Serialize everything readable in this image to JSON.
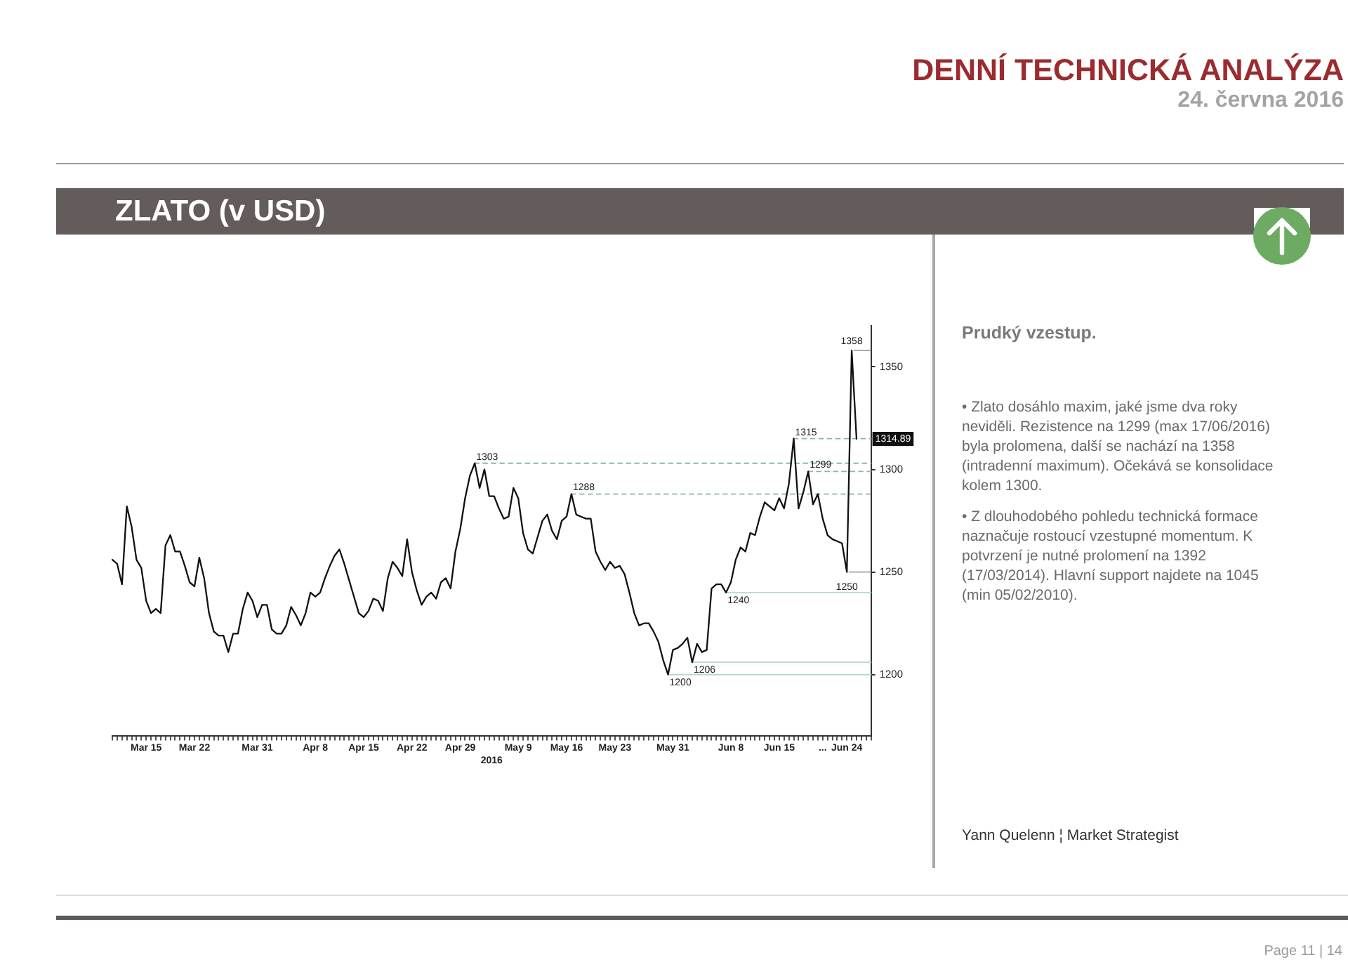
{
  "chart_data": {
    "type": "line",
    "title": "ZLATO (v USD)",
    "subtitle": "Prudký vzestup.",
    "xlabel": "2016",
    "annotations": [
      "DENNÍ TECHNICKÁ ANALÝZA",
      "24. června 2016",
      "• Zlato dosáhlo maxim, jaké jsme dva roky neviděli. Rezistence na 1299 (max 17/06/2016) byla prolomena, další se nachází na 1358 (intradenní maximum). Očekává se konsolidace kolem 1300.",
      "• Z dlouhodobého pohledu technická formace naznačuje rostoucí vzestupné momentum. K potvrzení je nutné prolomení na 1392 (17/03/2014). Hlavní support najdete na 1045 (min 05/02/2010).",
      "Yann Quelenn ¦ Market Strategist",
      "Page 11 | 14",
      {
        "text": "1358",
        "y": 1358
      },
      {
        "text": "1250",
        "y": 1250
      },
      {
        "text": "1314.89",
        "y": 1314.89
      }
    ],
    "categories": [
      null,
      null,
      null,
      null,
      null,
      null,
      null,
      "Mar 15",
      null,
      null,
      null,
      null,
      null,
      null,
      null,
      null,
      null,
      "Mar 22",
      null,
      null,
      null,
      null,
      null,
      null,
      null,
      null,
      null,
      null,
      null,
      null,
      "Mar 31",
      null,
      null,
      null,
      null,
      null,
      null,
      null,
      null,
      null,
      null,
      null,
      "Apr 8",
      null,
      null,
      null,
      null,
      null,
      null,
      null,
      null,
      null,
      "Apr 15",
      null,
      null,
      null,
      null,
      null,
      null,
      null,
      null,
      null,
      "Apr 22",
      null,
      null,
      null,
      null,
      null,
      null,
      null,
      null,
      null,
      "Apr 29",
      null,
      null,
      null,
      null,
      null,
      null,
      null,
      null,
      null,
      null,
      null,
      "May 9",
      null,
      null,
      null,
      null,
      null,
      null,
      null,
      null,
      null,
      "May 16",
      null,
      null,
      null,
      null,
      null,
      null,
      null,
      null,
      null,
      "May 23",
      null,
      null,
      null,
      null,
      null,
      null,
      null,
      null,
      null,
      null,
      null,
      "May 31",
      null,
      null,
      null,
      null,
      null,
      null,
      null,
      null,
      null,
      null,
      null,
      "Jun 8",
      null,
      null,
      null,
      null,
      null,
      null,
      null,
      null,
      null,
      "Jun 15",
      null,
      null,
      null,
      null,
      null,
      null,
      null,
      null,
      "...",
      null,
      null,
      null,
      null,
      "Jun 24",
      null,
      null,
      null,
      null,
      null
    ],
    "series": [
      {
        "color": "#111111",
        "values": [
          1256,
          1254,
          1244,
          1282,
          1272,
          1256,
          1252,
          1236,
          1230,
          1232,
          1230,
          1263,
          1268,
          1260,
          1260,
          1253,
          1245,
          1243,
          1257,
          1247,
          1230,
          1221,
          1219,
          1219,
          1211,
          1220,
          1220,
          1232,
          1240,
          1236,
          1228,
          1234,
          1234,
          1222,
          1220,
          1220,
          1224,
          1233,
          1229,
          1224,
          1230,
          1240,
          1238,
          1240,
          1247,
          1253,
          1258,
          1261,
          1254,
          1246,
          1238,
          1230,
          1228,
          1231,
          1237,
          1236,
          1231,
          1247,
          1255,
          1252,
          1248,
          1266,
          1250,
          1241,
          1234,
          1238,
          1240,
          1237,
          1245,
          1247,
          1242,
          1260,
          1271,
          1286,
          1297,
          1303,
          1291,
          1300,
          1287,
          1287,
          1281,
          1276,
          1277,
          1291,
          1286,
          1269,
          1261,
          1259,
          1267,
          1275,
          1278,
          1270,
          1266,
          1275,
          1277,
          1288,
          1278,
          1277,
          1276,
          1276,
          1260,
          1255,
          1251,
          1255,
          1252,
          1253,
          1249,
          1240,
          1230,
          1224,
          1225,
          1225,
          1221,
          1216,
          1207,
          1200,
          1212,
          1213,
          1215,
          1218,
          1206,
          1215,
          1211,
          1212,
          1242,
          1244,
          1244,
          1240,
          1245,
          1256,
          1262,
          1260,
          1269,
          1268,
          1277,
          1284,
          1282,
          1280,
          1286,
          1281,
          1293,
          1315,
          1281,
          1289,
          1299,
          1283,
          1288,
          1276,
          1268,
          1266,
          1265,
          1264,
          1250,
          1358,
          1314.89,
          null,
          null,
          null
        ]
      },
      {
        "name": "1303",
        "color": "#8db5ad",
        "line_style": "dashed",
        "values": [
          null,
          null,
          null,
          null,
          null,
          null,
          null,
          null,
          null,
          null,
          null,
          null,
          null,
          null,
          null,
          null,
          null,
          null,
          null,
          null,
          null,
          null,
          null,
          null,
          null,
          null,
          null,
          null,
          null,
          null,
          null,
          null,
          null,
          null,
          null,
          null,
          null,
          null,
          null,
          null,
          null,
          null,
          null,
          null,
          null,
          null,
          null,
          null,
          null,
          null,
          null,
          null,
          null,
          null,
          null,
          null,
          null,
          null,
          null,
          null,
          null,
          null,
          null,
          null,
          null,
          null,
          null,
          null,
          null,
          null,
          null,
          null,
          null,
          null,
          null,
          1303,
          1303,
          1303,
          1303,
          1303,
          1303,
          1303,
          1303,
          1303,
          1303,
          1303,
          1303,
          1303,
          1303,
          1303,
          1303,
          1303,
          1303,
          1303,
          1303,
          1303,
          1303,
          1303,
          1303,
          1303,
          1303,
          1303,
          1303,
          1303,
          1303,
          1303,
          1303,
          1303,
          1303,
          1303,
          1303,
          1303,
          1303,
          1303,
          1303,
          1303,
          1303,
          1303,
          1303,
          1303,
          1303,
          1303,
          1303,
          1303,
          1303,
          1303,
          1303,
          1303,
          1303,
          1303,
          1303,
          1303,
          1303,
          1303,
          1303,
          1303,
          1303,
          1303,
          1303,
          1303,
          1303,
          1303,
          1303,
          1303,
          1303,
          1303,
          1303,
          1303,
          1303,
          1303,
          1303,
          1303,
          1303,
          1303,
          1303,
          1303,
          1303,
          1303
        ]
      },
      {
        "name": "1288",
        "color": "#8db5ad",
        "line_style": "dashed",
        "values": [
          null,
          null,
          null,
          null,
          null,
          null,
          null,
          null,
          null,
          null,
          null,
          null,
          null,
          null,
          null,
          null,
          null,
          null,
          null,
          null,
          null,
          null,
          null,
          null,
          null,
          null,
          null,
          null,
          null,
          null,
          null,
          null,
          null,
          null,
          null,
          null,
          null,
          null,
          null,
          null,
          null,
          null,
          null,
          null,
          null,
          null,
          null,
          null,
          null,
          null,
          null,
          null,
          null,
          null,
          null,
          null,
          null,
          null,
          null,
          null,
          null,
          null,
          null,
          null,
          null,
          null,
          null,
          null,
          null,
          null,
          null,
          null,
          null,
          null,
          null,
          null,
          null,
          null,
          null,
          null,
          null,
          null,
          null,
          null,
          null,
          null,
          null,
          null,
          null,
          null,
          null,
          null,
          null,
          null,
          null,
          1288,
          1288,
          1288,
          1288,
          1288,
          1288,
          1288,
          1288,
          1288,
          1288,
          1288,
          1288,
          1288,
          1288,
          1288,
          1288,
          1288,
          1288,
          1288,
          1288,
          1288,
          1288,
          1288,
          1288,
          1288,
          1288,
          1288,
          1288,
          1288,
          1288,
          1288,
          1288,
          1288,
          1288,
          1288,
          1288,
          1288,
          1288,
          1288,
          1288,
          1288,
          1288,
          1288,
          1288,
          1288,
          1288,
          1288,
          1288,
          1288,
          1288,
          1288,
          1288,
          1288,
          1288,
          1288,
          1288,
          1288,
          1288,
          1288,
          1288,
          1288,
          1288,
          1288
        ]
      },
      {
        "name": "1315",
        "color": "#8db5ad",
        "line_style": "dashed",
        "values": [
          null,
          null,
          null,
          null,
          null,
          null,
          null,
          null,
          null,
          null,
          null,
          null,
          null,
          null,
          null,
          null,
          null,
          null,
          null,
          null,
          null,
          null,
          null,
          null,
          null,
          null,
          null,
          null,
          null,
          null,
          null,
          null,
          null,
          null,
          null,
          null,
          null,
          null,
          null,
          null,
          null,
          null,
          null,
          null,
          null,
          null,
          null,
          null,
          null,
          null,
          null,
          null,
          null,
          null,
          null,
          null,
          null,
          null,
          null,
          null,
          null,
          null,
          null,
          null,
          null,
          null,
          null,
          null,
          null,
          null,
          null,
          null,
          null,
          null,
          null,
          null,
          null,
          null,
          null,
          null,
          null,
          null,
          null,
          null,
          null,
          null,
          null,
          null,
          null,
          null,
          null,
          null,
          null,
          null,
          null,
          null,
          null,
          null,
          null,
          null,
          null,
          null,
          null,
          null,
          null,
          null,
          null,
          null,
          null,
          null,
          null,
          null,
          null,
          null,
          null,
          null,
          null,
          null,
          null,
          null,
          null,
          null,
          null,
          null,
          null,
          null,
          null,
          null,
          null,
          null,
          null,
          null,
          null,
          null,
          null,
          null,
          null,
          null,
          null,
          null,
          null,
          1315,
          1315,
          1315,
          1315,
          1315,
          1315,
          1315,
          1315,
          1315,
          1315,
          1315,
          1315,
          1315,
          1315,
          1315,
          1315,
          1315
        ]
      },
      {
        "name": "1299",
        "color": "#8db5ad",
        "line_style": "dashed",
        "values": [
          null,
          null,
          null,
          null,
          null,
          null,
          null,
          null,
          null,
          null,
          null,
          null,
          null,
          null,
          null,
          null,
          null,
          null,
          null,
          null,
          null,
          null,
          null,
          null,
          null,
          null,
          null,
          null,
          null,
          null,
          null,
          null,
          null,
          null,
          null,
          null,
          null,
          null,
          null,
          null,
          null,
          null,
          null,
          null,
          null,
          null,
          null,
          null,
          null,
          null,
          null,
          null,
          null,
          null,
          null,
          null,
          null,
          null,
          null,
          null,
          null,
          null,
          null,
          null,
          null,
          null,
          null,
          null,
          null,
          null,
          null,
          null,
          null,
          null,
          null,
          null,
          null,
          null,
          null,
          null,
          null,
          null,
          null,
          null,
          null,
          null,
          null,
          null,
          null,
          null,
          null,
          null,
          null,
          null,
          null,
          null,
          null,
          null,
          null,
          null,
          null,
          null,
          null,
          null,
          null,
          null,
          null,
          null,
          null,
          null,
          null,
          null,
          null,
          null,
          null,
          null,
          null,
          null,
          null,
          null,
          null,
          null,
          null,
          null,
          null,
          null,
          null,
          null,
          null,
          null,
          null,
          null,
          null,
          null,
          null,
          null,
          null,
          null,
          null,
          null,
          null,
          null,
          null,
          null,
          1299,
          1299,
          1299,
          1299,
          1299,
          1299,
          1299,
          1299,
          1299,
          1299,
          1299,
          1299,
          1299,
          1299
        ]
      },
      {
        "name": "1240",
        "color": "#b2dccd",
        "line_style": "solid",
        "values": [
          null,
          null,
          null,
          null,
          null,
          null,
          null,
          null,
          null,
          null,
          null,
          null,
          null,
          null,
          null,
          null,
          null,
          null,
          null,
          null,
          null,
          null,
          null,
          null,
          null,
          null,
          null,
          null,
          null,
          null,
          null,
          null,
          null,
          null,
          null,
          null,
          null,
          null,
          null,
          null,
          null,
          null,
          null,
          null,
          null,
          null,
          null,
          null,
          null,
          null,
          null,
          null,
          null,
          null,
          null,
          null,
          null,
          null,
          null,
          null,
          null,
          null,
          null,
          null,
          null,
          null,
          null,
          null,
          null,
          null,
          null,
          null,
          null,
          null,
          null,
          null,
          null,
          null,
          null,
          null,
          null,
          null,
          null,
          null,
          null,
          null,
          null,
          null,
          null,
          null,
          null,
          null,
          null,
          null,
          null,
          null,
          null,
          null,
          null,
          null,
          null,
          null,
          null,
          null,
          null,
          null,
          null,
          null,
          null,
          null,
          null,
          null,
          null,
          null,
          null,
          null,
          null,
          null,
          null,
          null,
          null,
          null,
          null,
          null,
          null,
          null,
          null,
          1240,
          1240,
          1240,
          1240,
          1240,
          1240,
          1240,
          1240,
          1240,
          1240,
          1240,
          1240,
          1240,
          1240,
          1240,
          1240,
          1240,
          1240,
          1240,
          1240,
          1240,
          1240,
          1240,
          1240,
          1240,
          1240,
          1240,
          1240,
          1240,
          1240,
          1240
        ]
      },
      {
        "name": "1206",
        "color": "#b2dccd",
        "line_style": "solid",
        "values": [
          null,
          null,
          null,
          null,
          null,
          null,
          null,
          null,
          null,
          null,
          null,
          null,
          null,
          null,
          null,
          null,
          null,
          null,
          null,
          null,
          null,
          null,
          null,
          null,
          null,
          null,
          null,
          null,
          null,
          null,
          null,
          null,
          null,
          null,
          null,
          null,
          null,
          null,
          null,
          null,
          null,
          null,
          null,
          null,
          null,
          null,
          null,
          null,
          null,
          null,
          null,
          null,
          null,
          null,
          null,
          null,
          null,
          null,
          null,
          null,
          null,
          null,
          null,
          null,
          null,
          null,
          null,
          null,
          null,
          null,
          null,
          null,
          null,
          null,
          null,
          null,
          null,
          null,
          null,
          null,
          null,
          null,
          null,
          null,
          null,
          null,
          null,
          null,
          null,
          null,
          null,
          null,
          null,
          null,
          null,
          null,
          null,
          null,
          null,
          null,
          null,
          null,
          null,
          null,
          null,
          null,
          null,
          null,
          null,
          null,
          null,
          null,
          null,
          null,
          null,
          null,
          null,
          null,
          null,
          null,
          1206,
          1206,
          1206,
          1206,
          1206,
          1206,
          1206,
          1206,
          1206,
          1206,
          1206,
          1206,
          1206,
          1206,
          1206,
          1206,
          1206,
          1206,
          1206,
          1206,
          1206,
          1206,
          1206,
          1206,
          1206,
          1206,
          1206,
          1206,
          1206,
          1206,
          1206,
          1206,
          1206,
          1206,
          1206,
          1206,
          1206,
          1206
        ]
      },
      {
        "name": "1200",
        "color": "#b2dccd",
        "line_style": "solid",
        "values": [
          null,
          null,
          null,
          null,
          null,
          null,
          null,
          null,
          null,
          null,
          null,
          null,
          null,
          null,
          null,
          null,
          null,
          null,
          null,
          null,
          null,
          null,
          null,
          null,
          null,
          null,
          null,
          null,
          null,
          null,
          null,
          null,
          null,
          null,
          null,
          null,
          null,
          null,
          null,
          null,
          null,
          null,
          null,
          null,
          null,
          null,
          null,
          null,
          null,
          null,
          null,
          null,
          null,
          null,
          null,
          null,
          null,
          null,
          null,
          null,
          null,
          null,
          null,
          null,
          null,
          null,
          null,
          null,
          null,
          null,
          null,
          null,
          null,
          null,
          null,
          null,
          null,
          null,
          null,
          null,
          null,
          null,
          null,
          null,
          null,
          null,
          null,
          null,
          null,
          null,
          null,
          null,
          null,
          null,
          null,
          null,
          null,
          null,
          null,
          null,
          null,
          null,
          null,
          null,
          null,
          null,
          null,
          null,
          null,
          null,
          null,
          null,
          null,
          null,
          null,
          1200,
          1200,
          1200,
          1200,
          1200,
          1200,
          1200,
          1200,
          1200,
          1200,
          1200,
          1200,
          1200,
          1200,
          1200,
          1200,
          1200,
          1200,
          1200,
          1200,
          1200,
          1200,
          1200,
          1200,
          1200,
          1200,
          1200,
          1200,
          1200,
          1200,
          1200,
          1200,
          1200,
          1200,
          1200,
          1200,
          1200,
          1200,
          1200,
          1200,
          1200,
          1200,
          1200
        ]
      }
    ],
    "ylim": [
      1170,
      1370
    ],
    "yticks": [
      1200,
      1250,
      1300,
      1350
    ]
  }
}
